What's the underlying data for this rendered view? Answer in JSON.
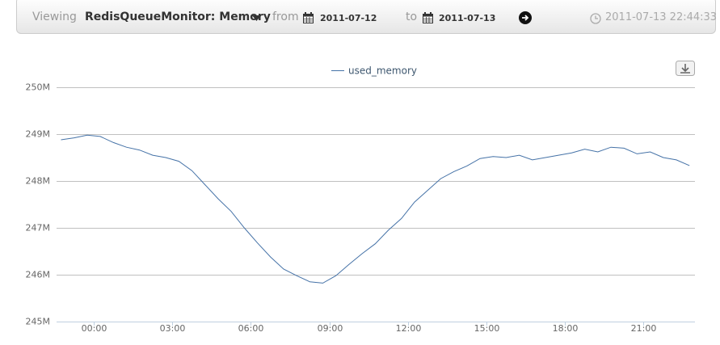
{
  "header": {
    "viewing": "Viewing",
    "title": "RedisQueueMonitor: Memory",
    "from_label": "from",
    "from_date": "2011-07-12",
    "to_label": "to",
    "to_date": "2011-07-13",
    "timestamp": "2011-07-13 22:44:33"
  },
  "chart_data": {
    "type": "line",
    "x": [
      -1.25,
      -0.75,
      -0.25,
      0.25,
      0.75,
      1.25,
      1.75,
      2.25,
      2.75,
      3.25,
      3.75,
      4.25,
      4.75,
      5.25,
      5.75,
      6.25,
      6.75,
      7.25,
      7.75,
      8.25,
      8.75,
      9.25,
      9.75,
      10.25,
      10.75,
      11.25,
      11.75,
      12.25,
      12.75,
      13.25,
      13.75,
      14.25,
      14.75,
      15.25,
      15.75,
      16.25,
      16.75,
      17.25,
      17.75,
      18.25,
      18.75,
      19.25,
      19.75,
      20.25,
      20.75,
      21.25,
      21.75,
      22.25,
      22.75
    ],
    "series": [
      {
        "name": "used_memory",
        "color": "#4572a7",
        "values": [
          248.88,
          248.92,
          248.98,
          248.95,
          248.82,
          248.72,
          248.66,
          248.55,
          248.5,
          248.42,
          248.22,
          247.92,
          247.62,
          247.35,
          247.0,
          246.68,
          246.38,
          246.12,
          245.98,
          245.85,
          245.82,
          245.98,
          246.22,
          246.45,
          246.66,
          246.95,
          247.2,
          247.55,
          247.8,
          248.05,
          248.2,
          248.32,
          248.48,
          248.52,
          248.5,
          248.55,
          248.45,
          248.5,
          248.55,
          248.6,
          248.68,
          248.62,
          248.72,
          248.7,
          248.58,
          248.62,
          248.5,
          248.45,
          248.33
        ]
      }
    ],
    "xlim": [
      -1.42,
      22.96
    ],
    "xticks": [
      {
        "value": 0,
        "label": "00:00"
      },
      {
        "value": 3,
        "label": "03:00"
      },
      {
        "value": 6,
        "label": "06:00"
      },
      {
        "value": 9,
        "label": "09:00"
      },
      {
        "value": 12,
        "label": "12:00"
      },
      {
        "value": 15,
        "label": "15:00"
      },
      {
        "value": 18,
        "label": "18:00"
      },
      {
        "value": 21,
        "label": "21:00"
      }
    ],
    "ylim": [
      245,
      250
    ],
    "yticks": [
      {
        "value": 245,
        "label": "245M"
      },
      {
        "value": 246,
        "label": "246M"
      },
      {
        "value": 247,
        "label": "247M"
      },
      {
        "value": 248,
        "label": "248M"
      },
      {
        "value": 249,
        "label": "249M"
      },
      {
        "value": 250,
        "label": "250M"
      }
    ],
    "grid": true,
    "legend": "top"
  }
}
